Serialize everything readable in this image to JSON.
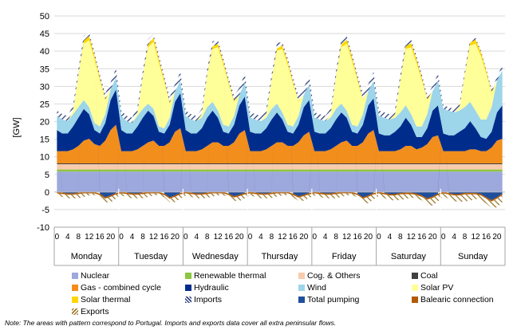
{
  "chart_data": {
    "type": "area",
    "ylabel": "[GW]",
    "ylim": [
      -10,
      50
    ],
    "yticks": [
      -10,
      -5,
      0,
      5,
      10,
      15,
      20,
      25,
      30,
      35,
      40,
      45,
      50
    ],
    "hour_labels": [
      "0",
      "4",
      "8",
      "12",
      "16",
      "20"
    ],
    "days": [
      "Monday",
      "Tuesday",
      "Wednesday",
      "Thursday",
      "Friday",
      "Saturday",
      "Sunday"
    ],
    "x_resolution_hours": 2,
    "series": [
      {
        "name": "Nuclear",
        "color": "#9da8dc",
        "values": [
          5.8,
          5.8,
          5.8,
          5.8,
          5.8,
          5.8,
          5.8,
          5.8,
          5.8,
          5.8,
          5.8,
          5.8,
          5.8,
          5.8,
          5.8,
          5.8,
          5.8,
          5.8,
          5.8,
          5.8,
          5.8,
          5.8,
          5.8,
          5.8,
          5.8,
          5.8,
          5.8,
          5.8,
          5.8,
          5.8,
          5.8,
          5.8,
          5.8,
          5.8,
          5.8,
          5.8,
          5.8,
          5.8,
          5.8,
          5.8,
          5.8,
          5.8,
          5.8,
          5.8,
          5.8,
          5.8,
          5.8,
          5.8,
          5.8,
          5.8,
          5.8,
          5.8,
          5.8,
          5.8,
          5.8,
          5.8,
          5.8,
          5.8,
          5.8,
          5.8,
          5.8,
          5.8,
          5.8,
          5.8,
          5.8,
          5.8,
          5.8,
          5.8,
          5.8,
          5.8,
          5.8,
          5.8,
          5.8,
          5.8,
          5.8,
          5.8,
          5.8,
          5.8,
          5.8,
          5.8,
          5.8,
          5.8,
          5.8,
          5.8
        ]
      },
      {
        "name": "Renewable thermal",
        "color": "#8dc63f",
        "values": [
          0.6,
          0.6,
          0.6,
          0.6,
          0.6,
          0.6,
          0.6,
          0.6,
          0.6,
          0.6,
          0.6,
          0.6,
          0.6,
          0.6,
          0.6,
          0.6,
          0.6,
          0.6,
          0.6,
          0.6,
          0.6,
          0.6,
          0.6,
          0.6,
          0.6,
          0.6,
          0.6,
          0.6,
          0.6,
          0.6,
          0.6,
          0.6,
          0.6,
          0.6,
          0.6,
          0.6,
          0.6,
          0.6,
          0.6,
          0.6,
          0.6,
          0.6,
          0.6,
          0.6,
          0.6,
          0.6,
          0.6,
          0.6,
          0.6,
          0.6,
          0.6,
          0.6,
          0.6,
          0.6,
          0.6,
          0.6,
          0.6,
          0.6,
          0.6,
          0.6,
          0.6,
          0.6,
          0.6,
          0.6,
          0.6,
          0.6,
          0.6,
          0.6,
          0.6,
          0.6,
          0.6,
          0.6,
          0.6,
          0.6,
          0.6,
          0.6,
          0.6,
          0.6,
          0.6,
          0.6,
          0.6,
          0.6,
          0.6,
          0.6
        ]
      },
      {
        "name": "Cog. & Others",
        "color": "#f8cbad",
        "values": [
          1.5,
          1.5,
          1.5,
          1.5,
          1.5,
          1.5,
          1.5,
          1.5,
          1.5,
          1.5,
          1.5,
          1.5,
          1.5,
          1.5,
          1.5,
          1.5,
          1.5,
          1.5,
          1.5,
          1.5,
          1.5,
          1.5,
          1.5,
          1.5,
          1.5,
          1.5,
          1.5,
          1.5,
          1.5,
          1.5,
          1.5,
          1.5,
          1.5,
          1.5,
          1.5,
          1.5,
          1.5,
          1.5,
          1.5,
          1.5,
          1.5,
          1.5,
          1.5,
          1.5,
          1.5,
          1.5,
          1.5,
          1.5,
          1.5,
          1.5,
          1.5,
          1.5,
          1.5,
          1.5,
          1.5,
          1.5,
          1.5,
          1.5,
          1.5,
          1.5,
          1.5,
          1.5,
          1.5,
          1.5,
          1.5,
          1.5,
          1.5,
          1.5,
          1.5,
          1.5,
          1.5,
          1.5,
          1.5,
          1.5,
          1.5,
          1.5,
          1.5,
          1.5,
          1.5,
          1.5,
          1.5,
          1.5,
          1.5,
          1.5
        ]
      },
      {
        "name": "Coal",
        "color": "#404040",
        "values": [
          0.2,
          0.2,
          0.2,
          0.2,
          0.2,
          0.2,
          0.2,
          0.2,
          0.2,
          0.2,
          0.2,
          0.2,
          0.2,
          0.2,
          0.2,
          0.2,
          0.2,
          0.2,
          0.2,
          0.2,
          0.2,
          0.2,
          0.2,
          0.2,
          0.2,
          0.2,
          0.2,
          0.2,
          0.2,
          0.2,
          0.2,
          0.2,
          0.2,
          0.2,
          0.2,
          0.2,
          0.2,
          0.2,
          0.2,
          0.2,
          0.2,
          0.2,
          0.2,
          0.2,
          0.2,
          0.2,
          0.2,
          0.2,
          0.2,
          0.2,
          0.2,
          0.2,
          0.2,
          0.2,
          0.2,
          0.2,
          0.2,
          0.2,
          0.2,
          0.2,
          0.2,
          0.2,
          0.2,
          0.2,
          0.2,
          0.2,
          0.2,
          0.2,
          0.2,
          0.2,
          0.2,
          0.2,
          0.2,
          0.2,
          0.2,
          0.2,
          0.2,
          0.2,
          0.2,
          0.2,
          0.2,
          0.2,
          0.2,
          0.2
        ]
      },
      {
        "name": "Gas - combined cycle",
        "color": "#f28e1c",
        "values": [
          3.5,
          3.5,
          3.5,
          4,
          5,
          6.5,
          7,
          5.5,
          5,
          6.5,
          9.5,
          11,
          3.5,
          3.5,
          3.5,
          4,
          5,
          6,
          6.5,
          5,
          5,
          6,
          9,
          10,
          3.5,
          3.5,
          3.5,
          4,
          5,
          6,
          6,
          5,
          5,
          6,
          8.5,
          9.5,
          3.5,
          3.5,
          3.5,
          4,
          5,
          6,
          6,
          5,
          5,
          6,
          8,
          9,
          3.5,
          3.5,
          3.5,
          4,
          5,
          6,
          6.5,
          5,
          5,
          6,
          8.5,
          9.5,
          3.5,
          3.5,
          3.5,
          3.5,
          4,
          5,
          5,
          4,
          4.5,
          5.5,
          7.5,
          8,
          3.5,
          3.5,
          3.5,
          3.5,
          3.5,
          4,
          4,
          3.5,
          3.5,
          4.5,
          6.5,
          7
        ]
      },
      {
        "name": "Hydraulic",
        "color": "#002d8c",
        "values": [
          6,
          5,
          5,
          6.5,
          8,
          9,
          7,
          4,
          3.5,
          5,
          8.5,
          10,
          6,
          5,
          5,
          6.5,
          8,
          9,
          7,
          4,
          3.5,
          5,
          8.5,
          10,
          6,
          5,
          5,
          6,
          8,
          9,
          7,
          4,
          3.5,
          5,
          8,
          9.5,
          5.5,
          5,
          5,
          6,
          7.5,
          8.5,
          6.5,
          4,
          3.5,
          5,
          8,
          9,
          5.5,
          5,
          5,
          6,
          7.5,
          8.5,
          6.5,
          4,
          3.5,
          5,
          8,
          9,
          5,
          4.5,
          4.5,
          5.5,
          6.5,
          8,
          6,
          3.5,
          3,
          4.5,
          7.5,
          8.5,
          5,
          4.5,
          4.5,
          5.5,
          6.5,
          8,
          6,
          4,
          3.5,
          4.5,
          8,
          9.5
        ]
      },
      {
        "name": "Wind",
        "color": "#9dd5ea",
        "values": [
          4,
          4,
          3.5,
          3.5,
          3,
          2.5,
          2,
          2,
          2,
          2.5,
          3,
          3.5,
          4,
          3.5,
          3,
          3,
          2.5,
          2,
          2,
          1.5,
          1.5,
          2,
          3,
          3.5,
          4,
          4,
          3.5,
          3,
          3,
          2.5,
          2,
          2,
          2,
          2.5,
          3,
          4,
          4,
          4,
          3.5,
          3,
          3,
          2.5,
          2,
          2,
          2,
          2.5,
          3.5,
          4.5,
          4,
          4,
          3.5,
          3,
          3,
          2.5,
          2,
          2,
          2,
          3,
          4,
          5,
          5,
          5,
          4.5,
          4,
          4,
          3.5,
          3,
          3,
          3,
          4,
          5.5,
          7,
          7,
          7,
          6.5,
          6,
          6,
          5.5,
          5,
          5,
          5.5,
          7,
          9,
          10
        ]
      },
      {
        "name": "Solar PV",
        "color": "#ffff99",
        "values": [
          0,
          0,
          0,
          1,
          9,
          16,
          19,
          18,
          13,
          4,
          0,
          0,
          0,
          0,
          0,
          1,
          9,
          16,
          19,
          18,
          13,
          4,
          0,
          0,
          0,
          0,
          0,
          1,
          9,
          15,
          18,
          17,
          12,
          4,
          0,
          0,
          0,
          0,
          0,
          1,
          8,
          15,
          18,
          17,
          12,
          4,
          0,
          0,
          0,
          0,
          0,
          1,
          9,
          16,
          19,
          18,
          13,
          4,
          0,
          0,
          0,
          0,
          0,
          1,
          9,
          16,
          19,
          18,
          13,
          4,
          0,
          0,
          0,
          0,
          0,
          1,
          9,
          16,
          19,
          18,
          13,
          4,
          0,
          0
        ]
      },
      {
        "name": "Solar thermal",
        "color": "#ffd700",
        "values": [
          0,
          0,
          0,
          0,
          0.3,
          0.8,
          1.2,
          1.1,
          0.8,
          0.3,
          0,
          0,
          0,
          0,
          0,
          0,
          0.3,
          0.8,
          1.2,
          1.1,
          0.8,
          0.3,
          0,
          0,
          0,
          0,
          0,
          0,
          0.3,
          0.7,
          1,
          0.9,
          0.7,
          0.3,
          0,
          0,
          0,
          0,
          0,
          0,
          0.3,
          0.7,
          1,
          0.9,
          0.7,
          0.3,
          0,
          0,
          0,
          0,
          0,
          0,
          0.3,
          0.8,
          1.2,
          1.1,
          0.8,
          0.3,
          0,
          0,
          0,
          0,
          0,
          0,
          0.3,
          0.8,
          1.2,
          1.1,
          0.8,
          0.3,
          0,
          0,
          0,
          0,
          0,
          0,
          0.3,
          0.8,
          1.2,
          1.1,
          0.8,
          0.3,
          0,
          0
        ]
      },
      {
        "name": "Imports",
        "color": "#2e3f7c",
        "hatched": true,
        "values": [
          1.5,
          1.5,
          1.5,
          1.5,
          1.5,
          1.5,
          1,
          1,
          1,
          1.5,
          2,
          2.5,
          1.5,
          1.5,
          1.5,
          1.5,
          1.5,
          1.5,
          1,
          1,
          1,
          1.5,
          2,
          2.5,
          1.5,
          1.5,
          1.5,
          1.5,
          1.5,
          1.5,
          1,
          1,
          1,
          1.5,
          2,
          2.5,
          1.5,
          1.5,
          1.5,
          1.5,
          1.5,
          1.5,
          1,
          1,
          1,
          1.5,
          2,
          2.5,
          1.5,
          1.5,
          1.5,
          1.5,
          1.5,
          1.5,
          1,
          1,
          1,
          1.5,
          2,
          2.5,
          1.5,
          1.5,
          1.5,
          1.5,
          1.5,
          1.5,
          1,
          1,
          1,
          1,
          1.5,
          2,
          1,
          1,
          1,
          1,
          1,
          1,
          0.5,
          0.5,
          0.5,
          0.8,
          1,
          1.5
        ]
      },
      {
        "name": "Total pumping",
        "color": "#1f4e9c",
        "values": [
          0,
          -0.2,
          -0.4,
          -0.4,
          -0.2,
          0,
          0,
          0,
          -0.5,
          -1.5,
          -1,
          -0.3,
          0,
          -0.2,
          -0.4,
          -0.4,
          -0.2,
          0,
          0,
          0,
          -0.5,
          -1.5,
          -1,
          -0.3,
          0,
          -0.2,
          -0.4,
          -0.4,
          -0.2,
          0,
          0,
          0,
          -0.5,
          -1.2,
          -0.8,
          -0.3,
          0,
          -0.2,
          -0.4,
          -0.4,
          -0.2,
          0,
          0,
          0,
          -0.5,
          -1.2,
          -0.8,
          -0.3,
          0,
          -0.2,
          -0.4,
          -0.4,
          -0.2,
          0,
          0,
          0,
          -0.5,
          -1.5,
          -1,
          -0.3,
          0,
          -0.3,
          -0.6,
          -0.6,
          -0.3,
          -0.2,
          -0.2,
          -0.5,
          -1,
          -1.8,
          -1.3,
          -0.5,
          0,
          -0.3,
          -0.6,
          -0.6,
          -0.3,
          -0.3,
          -0.3,
          -0.6,
          -1.5,
          -2.3,
          -1.5,
          -0.5
        ]
      },
      {
        "name": "Balearic connection",
        "color": "#b35900",
        "values": [
          -0.4,
          -0.4,
          -0.4,
          -0.4,
          -0.4,
          -0.4,
          -0.4,
          -0.4,
          -0.4,
          -0.4,
          -0.4,
          -0.4,
          -0.4,
          -0.4,
          -0.4,
          -0.4,
          -0.4,
          -0.4,
          -0.4,
          -0.4,
          -0.4,
          -0.4,
          -0.4,
          -0.4,
          -0.4,
          -0.4,
          -0.4,
          -0.4,
          -0.4,
          -0.4,
          -0.4,
          -0.4,
          -0.4,
          -0.4,
          -0.4,
          -0.4,
          -0.4,
          -0.4,
          -0.4,
          -0.4,
          -0.4,
          -0.4,
          -0.4,
          -0.4,
          -0.4,
          -0.4,
          -0.4,
          -0.4,
          -0.4,
          -0.4,
          -0.4,
          -0.4,
          -0.4,
          -0.4,
          -0.4,
          -0.4,
          -0.4,
          -0.4,
          -0.4,
          -0.4,
          -0.4,
          -0.4,
          -0.4,
          -0.4,
          -0.4,
          -0.4,
          -0.4,
          -0.4,
          -0.4,
          -0.4,
          -0.4,
          -0.4,
          -0.4,
          -0.4,
          -0.4,
          -0.4,
          -0.4,
          -0.4,
          -0.4,
          -0.4,
          -0.4,
          -0.4,
          -0.4,
          -0.4
        ]
      },
      {
        "name": "Exports",
        "color": "#9c7a2e",
        "hatched": true,
        "values": [
          -0.6,
          -0.8,
          -1,
          -1,
          -1.2,
          -1,
          -0.6,
          -0.5,
          -0.6,
          -1,
          -1.6,
          -1.2,
          -0.6,
          -0.8,
          -1,
          -1,
          -1.2,
          -1,
          -0.6,
          -0.5,
          -0.6,
          -1,
          -1.5,
          -1.2,
          -0.6,
          -0.8,
          -1,
          -1,
          -1.1,
          -0.9,
          -0.6,
          -0.5,
          -0.6,
          -0.9,
          -1.4,
          -1.1,
          -0.6,
          -0.8,
          -1,
          -1,
          -1.1,
          -0.9,
          -0.6,
          -0.5,
          -0.6,
          -0.9,
          -1.3,
          -1,
          -0.6,
          -0.8,
          -1,
          -1,
          -1.2,
          -1,
          -0.6,
          -0.5,
          -0.6,
          -1.2,
          -1.8,
          -1.4,
          -0.7,
          -1,
          -1.3,
          -1.4,
          -1.6,
          -1.4,
          -1,
          -0.9,
          -1,
          -1.5,
          -2.2,
          -1.8,
          -0.8,
          -1.2,
          -1.6,
          -1.8,
          -2,
          -1.8,
          -1.3,
          -1.2,
          -1.4,
          -1.8,
          -2.5,
          -2
        ]
      }
    ]
  },
  "legend": {
    "items": [
      {
        "label": "Nuclear",
        "color": "#9da8dc"
      },
      {
        "label": "Renewable thermal",
        "color": "#8dc63f"
      },
      {
        "label": "Cog. & Others",
        "color": "#f8cbad"
      },
      {
        "label": "Coal",
        "color": "#404040"
      },
      {
        "label": "Gas - combined cycle",
        "color": "#f28e1c"
      },
      {
        "label": "Hydraulic",
        "color": "#002d8c"
      },
      {
        "label": "Wind",
        "color": "#9dd5ea"
      },
      {
        "label": "Solar PV",
        "color": "#ffff99"
      },
      {
        "label": "Solar thermal",
        "color": "#ffd700"
      },
      {
        "label": "Imports",
        "color": "#2e3f7c"
      },
      {
        "label": "Total pumping",
        "color": "#1f4e9c"
      },
      {
        "label": "Balearic connection",
        "color": "#b35900"
      },
      {
        "label": "Exports",
        "color": "#9c7a2e"
      }
    ]
  },
  "note": "Note: The areas with pattern correspond to Portugal. Imports and exports data cover all extra peninsular flows."
}
